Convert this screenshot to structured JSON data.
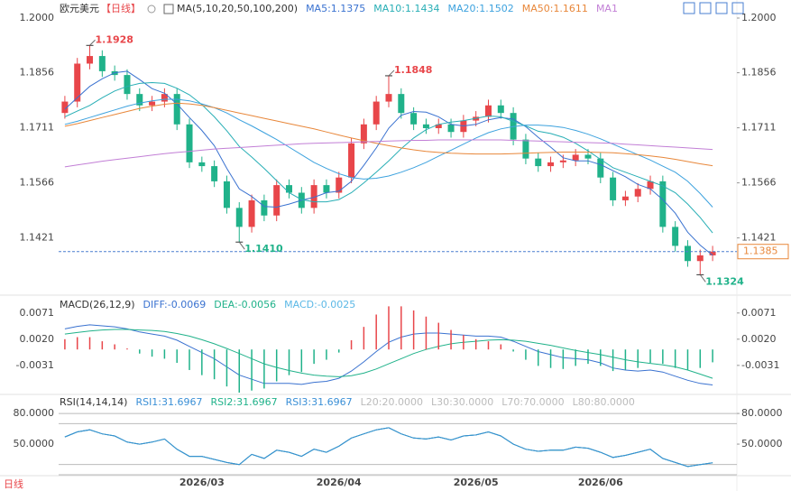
{
  "header": {
    "name": "欧元美元",
    "period": "【日线】",
    "footer": "日线"
  },
  "chart_data": [
    {
      "type": "candlestick",
      "title": "MA(5,10,20,50,100,200)",
      "categories": [
        null,
        null,
        null,
        null,
        null,
        null,
        null,
        null,
        null,
        null,
        null,
        "2026/03",
        null,
        null,
        null,
        null,
        null,
        null,
        null,
        null,
        null,
        null,
        "2026/04",
        null,
        null,
        null,
        null,
        null,
        null,
        null,
        null,
        null,
        null,
        "2026/05",
        null,
        null,
        null,
        null,
        null,
        null,
        null,
        null,
        null,
        "2026/06",
        null,
        null,
        null,
        null,
        null,
        null,
        null,
        null,
        null
      ],
      "open": [
        1.175,
        1.178,
        1.188,
        1.19,
        1.186,
        1.185,
        1.18,
        1.177,
        1.178,
        1.18,
        1.172,
        1.162,
        1.161,
        1.157,
        1.15,
        1.145,
        1.152,
        1.148,
        1.156,
        1.154,
        1.15,
        1.156,
        1.154,
        1.158,
        1.167,
        1.172,
        1.178,
        1.18,
        1.175,
        1.172,
        1.171,
        1.172,
        1.17,
        1.173,
        1.174,
        1.177,
        1.175,
        1.168,
        1.163,
        1.161,
        1.162,
        1.1625,
        1.164,
        1.163,
        1.158,
        1.152,
        1.153,
        1.155,
        1.157,
        1.145,
        1.14,
        1.136,
        1.1375
      ],
      "high": [
        1.1795,
        1.1895,
        1.1928,
        1.1915,
        1.1875,
        1.1865,
        1.1815,
        1.1795,
        1.1815,
        1.1815,
        1.1735,
        1.1635,
        1.1625,
        1.1585,
        1.1515,
        1.1535,
        1.1535,
        1.1575,
        1.1575,
        1.1555,
        1.1575,
        1.1575,
        1.1595,
        1.1685,
        1.1735,
        1.1795,
        1.1848,
        1.1815,
        1.1765,
        1.1735,
        1.1735,
        1.1735,
        1.1745,
        1.1755,
        1.1785,
        1.1785,
        1.1765,
        1.1695,
        1.1645,
        1.1635,
        1.164,
        1.1655,
        1.1655,
        1.1645,
        1.1595,
        1.1545,
        1.1565,
        1.1585,
        1.1585,
        1.1465,
        1.1415,
        1.139,
        1.14
      ],
      "low": [
        1.1735,
        1.1765,
        1.1865,
        1.1845,
        1.1835,
        1.1785,
        1.1755,
        1.1755,
        1.1765,
        1.1705,
        1.1605,
        1.1595,
        1.1555,
        1.1485,
        1.141,
        1.1435,
        1.1465,
        1.1465,
        1.1525,
        1.1485,
        1.1485,
        1.1525,
        1.1525,
        1.1565,
        1.1655,
        1.1705,
        1.1765,
        1.1735,
        1.1705,
        1.1695,
        1.1695,
        1.1685,
        1.1685,
        1.1715,
        1.1725,
        1.1735,
        1.1665,
        1.1615,
        1.1595,
        1.1595,
        1.1605,
        1.161,
        1.1615,
        1.1565,
        1.1505,
        1.1505,
        1.1515,
        1.1535,
        1.1435,
        1.1385,
        1.1345,
        1.1324,
        1.136
      ],
      "close": [
        1.178,
        1.188,
        1.19,
        1.186,
        1.185,
        1.18,
        1.177,
        1.178,
        1.18,
        1.172,
        1.162,
        1.161,
        1.157,
        1.15,
        1.145,
        1.152,
        1.148,
        1.156,
        1.154,
        1.15,
        1.156,
        1.154,
        1.158,
        1.167,
        1.172,
        1.178,
        1.18,
        1.175,
        1.172,
        1.171,
        1.172,
        1.17,
        1.173,
        1.174,
        1.177,
        1.175,
        1.168,
        1.163,
        1.161,
        1.162,
        1.1625,
        1.164,
        1.163,
        1.158,
        1.152,
        1.153,
        1.155,
        1.157,
        1.145,
        1.14,
        1.136,
        1.1375,
        1.1385
      ],
      "up_color": "#e8464a",
      "down_color": "#20b28a",
      "ylim": [
        1.1275,
        1.2
      ],
      "yticks": [
        {
          "value": 1.2,
          "label": "1.2000"
        },
        1.1856,
        1.1711,
        1.1566,
        1.1421
      ],
      "last_price": {
        "value": 1.1385,
        "label": "1.1385"
      },
      "annotations": [
        {
          "value": 1.1928,
          "label": "1.1928"
        },
        {
          "value": 1.1848,
          "label": "1.1848"
        },
        {
          "value": 1.141,
          "label": "1.1410"
        },
        {
          "value": 1.1324,
          "label": "1.1324"
        }
      ],
      "series": [
        {
          "name": "MA5:1.1375",
          "color": "#3a72d0",
          "values": [
            1.176,
            1.179,
            1.182,
            1.184,
            1.1856,
            1.186,
            1.1838,
            1.1814,
            1.1802,
            1.1774,
            1.1738,
            1.1704,
            1.1664,
            1.1604,
            1.155,
            1.153,
            1.1504,
            1.1502,
            1.151,
            1.152,
            1.1528,
            1.154,
            1.1544,
            1.157,
            1.1612,
            1.1658,
            1.171,
            1.1744,
            1.1754,
            1.1752,
            1.174,
            1.172,
            1.1716,
            1.172,
            1.1732,
            1.1738,
            1.1734,
            1.1714,
            1.1686,
            1.166,
            1.1632,
            1.1624,
            1.1624,
            1.1614,
            1.1598,
            1.1582,
            1.1562,
            1.155,
            1.1522,
            1.1486,
            1.1436,
            1.1402,
            1.1375
          ]
        },
        {
          "name": "MA10:1.1434",
          "color": "#27aeb5",
          "values": [
            1.174,
            1.1755,
            1.177,
            1.179,
            1.1808,
            1.182,
            1.1828,
            1.183,
            1.1828,
            1.1815,
            1.1798,
            1.1772,
            1.174,
            1.1703,
            1.1662,
            1.1634,
            1.1604,
            1.1572,
            1.154,
            1.1522,
            1.1516,
            1.1516,
            1.1522,
            1.154,
            1.1566,
            1.1594,
            1.1624,
            1.1656,
            1.1684,
            1.1706,
            1.172,
            1.1726,
            1.173,
            1.1736,
            1.1742,
            1.174,
            1.1728,
            1.1716,
            1.1702,
            1.1696,
            1.1686,
            1.167,
            1.165,
            1.1628,
            1.1606,
            1.1594,
            1.1582,
            1.157,
            1.1558,
            1.154,
            1.151,
            1.1475,
            1.1434
          ]
        },
        {
          "name": "MA20:1.1502",
          "color": "#3da2de",
          "values": [
            1.172,
            1.1728,
            1.1738,
            1.1748,
            1.1758,
            1.1768,
            1.1776,
            1.1782,
            1.1786,
            1.1786,
            1.1782,
            1.1774,
            1.1764,
            1.175,
            1.1732,
            1.1716,
            1.1698,
            1.168,
            1.166,
            1.164,
            1.162,
            1.1604,
            1.159,
            1.158,
            1.1576,
            1.1578,
            1.1584,
            1.1594,
            1.1606,
            1.162,
            1.1636,
            1.1652,
            1.1668,
            1.1684,
            1.1698,
            1.1708,
            1.1714,
            1.1718,
            1.1718,
            1.1716,
            1.1712,
            1.1704,
            1.1694,
            1.1682,
            1.1668,
            1.1654,
            1.164,
            1.1626,
            1.161,
            1.1594,
            1.157,
            1.1538,
            1.1502
          ]
        },
        {
          "name": "MA50:1.1611",
          "color": "#e8873a",
          "values": [
            1.1715,
            1.1722,
            1.173,
            1.1738,
            1.1746,
            1.1754,
            1.1762,
            1.1768,
            1.1773,
            1.1776,
            1.1774,
            1.177,
            1.1764,
            1.1757,
            1.175,
            1.1743,
            1.1736,
            1.1729,
            1.1722,
            1.1715,
            1.1708,
            1.17,
            1.1692,
            1.1684,
            1.1677,
            1.167,
            1.1664,
            1.1658,
            1.1653,
            1.1649,
            1.1646,
            1.1644,
            1.1643,
            1.1642,
            1.1642,
            1.1642,
            1.1643,
            1.1644,
            1.1645,
            1.1646,
            1.1647,
            1.1647,
            1.1647,
            1.1646,
            1.1645,
            1.1643,
            1.164,
            1.1637,
            1.1633,
            1.1628,
            1.1622,
            1.1616,
            1.1611
          ]
        },
        {
          "name": "MA1",
          "color": "#c27fd6",
          "values": [
            1.1608,
            1.1613,
            1.1618,
            1.1623,
            1.1627,
            1.1631,
            1.1635,
            1.1639,
            1.1643,
            1.1646,
            1.1649,
            1.1652,
            1.1655,
            1.1657,
            1.1659,
            1.1661,
            1.1663,
            1.1665,
            1.1667,
            1.1669,
            1.167,
            1.1671,
            1.1672,
            1.1673,
            1.1674,
            1.1675,
            1.1676,
            1.1677,
            1.1678,
            1.1678,
            1.1679,
            1.1679,
            1.1679,
            1.1679,
            1.1679,
            1.1679,
            1.1678,
            1.1677,
            1.1676,
            1.1675,
            1.1674,
            1.1673,
            1.1672,
            1.1671,
            1.167,
            1.1668,
            1.1666,
            1.1664,
            1.1662,
            1.166,
            1.1658,
            1.1656,
            1.1654
          ]
        }
      ]
    },
    {
      "type": "macd",
      "title": "MACD(26,12,9)",
      "ylim": [
        -0.0084,
        0.0104
      ],
      "yticks": [
        0.0071,
        {
          "value": 0.002,
          "label": "0.0020"
        },
        -0.0031
      ],
      "up_color": "#e8464a",
      "down_color": "#20b28a",
      "series": [
        {
          "name": "DIFF:-0.0069",
          "color": "#3a72d0",
          "values": [
            0.004,
            0.0045,
            0.0048,
            0.0046,
            0.0044,
            0.004,
            0.0034,
            0.003,
            0.0026,
            0.0018,
            0.0006,
            -0.0006,
            -0.0018,
            -0.0034,
            -0.005,
            -0.0058,
            -0.0066,
            -0.0066,
            -0.0066,
            -0.0068,
            -0.0064,
            -0.0062,
            -0.0056,
            -0.0042,
            -0.0024,
            -0.0004,
            0.0014,
            0.0024,
            0.003,
            0.0032,
            0.0032,
            0.003,
            0.0028,
            0.0026,
            0.0026,
            0.0024,
            0.0016,
            0.0006,
            -0.0004,
            -0.001,
            -0.0016,
            -0.0018,
            -0.002,
            -0.0026,
            -0.0036,
            -0.004,
            -0.0042,
            -0.004,
            -0.0044,
            -0.0052,
            -0.006,
            -0.0066,
            -0.0069
          ]
        },
        {
          "name": "DEA:-0.0056",
          "color": "#20b28a",
          "values": [
            0.003,
            0.0033,
            0.0036,
            0.0038,
            0.0039,
            0.0039,
            0.0038,
            0.0037,
            0.0035,
            0.0031,
            0.0026,
            0.0019,
            0.0011,
            0.0002,
            -0.0008,
            -0.0018,
            -0.0028,
            -0.0035,
            -0.0041,
            -0.0046,
            -0.005,
            -0.0052,
            -0.0053,
            -0.0051,
            -0.0046,
            -0.0038,
            -0.0028,
            -0.0018,
            -0.0008,
            0.0,
            0.0006,
            0.0011,
            0.0014,
            0.0016,
            0.0018,
            0.0019,
            0.0018,
            0.0016,
            0.0012,
            0.0008,
            0.0003,
            -0.0002,
            -0.0006,
            -0.001,
            -0.0015,
            -0.002,
            -0.0024,
            -0.0027,
            -0.003,
            -0.0034,
            -0.004,
            -0.0048,
            -0.0056
          ]
        },
        {
          "name": "MACD:-0.0025",
          "color": "#5bb8e6",
          "histogram": true,
          "values": [
            0.002,
            0.0024,
            0.0024,
            0.0016,
            0.001,
            0.0002,
            -0.0008,
            -0.0014,
            -0.0018,
            -0.0026,
            -0.004,
            -0.005,
            -0.0058,
            -0.0072,
            -0.0084,
            -0.008,
            -0.0076,
            -0.0062,
            -0.005,
            -0.0044,
            -0.0028,
            -0.002,
            -0.0006,
            0.0018,
            0.0044,
            0.0068,
            0.0084,
            0.0084,
            0.0076,
            0.0064,
            0.0052,
            0.0038,
            0.0028,
            0.002,
            0.0016,
            0.001,
            -0.0004,
            -0.002,
            -0.0032,
            -0.0036,
            -0.0038,
            -0.0032,
            -0.0028,
            -0.0032,
            -0.0042,
            -0.004,
            -0.0036,
            -0.0026,
            -0.0028,
            -0.0036,
            -0.004,
            -0.0036,
            -0.0025
          ]
        }
      ]
    },
    {
      "type": "line",
      "title": "RSI(14,14,14)",
      "ylim": [
        20,
        96
      ],
      "yticks": [
        {
          "value": 80,
          "label": "80.0000"
        },
        {
          "value": 50,
          "label": "50.0000"
        }
      ],
      "ref_lines": [
        {
          "value": 20,
          "label": "L20:20.0000"
        },
        {
          "value": 30,
          "label": "L30:30.0000"
        },
        {
          "value": 70,
          "label": "L70:70.0000"
        },
        {
          "value": 80,
          "label": "L80:80.0000"
        }
      ],
      "series": [
        {
          "name": "RSI1:31.6967",
          "color": "#3a8fd6",
          "values": [
            57,
            62,
            64,
            60,
            58,
            52,
            50,
            52,
            55,
            45,
            38,
            38,
            35,
            32,
            30,
            40,
            36,
            44,
            42,
            38,
            45,
            42,
            48,
            56,
            60,
            64,
            66,
            60,
            56,
            55,
            57,
            54,
            58,
            59,
            62,
            58,
            50,
            45,
            43,
            44,
            44,
            47,
            46,
            42,
            37,
            39,
            42,
            45,
            36,
            32,
            28,
            30,
            31.6967
          ]
        },
        {
          "name": "RSI2:31.6967",
          "color": "#20b28a",
          "values": [
            57,
            62,
            64,
            60,
            58,
            52,
            50,
            52,
            55,
            45,
            38,
            38,
            35,
            32,
            30,
            40,
            36,
            44,
            42,
            38,
            45,
            42,
            48,
            56,
            60,
            64,
            66,
            60,
            56,
            55,
            57,
            54,
            58,
            59,
            62,
            58,
            50,
            45,
            43,
            44,
            44,
            47,
            46,
            42,
            37,
            39,
            42,
            45,
            36,
            32,
            28,
            30,
            31.6967
          ]
        },
        {
          "name": "RSI3:31.6967",
          "color": "#3a8fd6",
          "values": [
            57,
            62,
            64,
            60,
            58,
            52,
            50,
            52,
            55,
            45,
            38,
            38,
            35,
            32,
            30,
            40,
            36,
            44,
            42,
            38,
            45,
            42,
            48,
            56,
            60,
            64,
            66,
            60,
            56,
            55,
            57,
            54,
            58,
            59,
            62,
            58,
            50,
            45,
            43,
            44,
            44,
            47,
            46,
            42,
            37,
            39,
            42,
            45,
            36,
            32,
            28,
            30,
            31.6967
          ]
        }
      ]
    }
  ]
}
